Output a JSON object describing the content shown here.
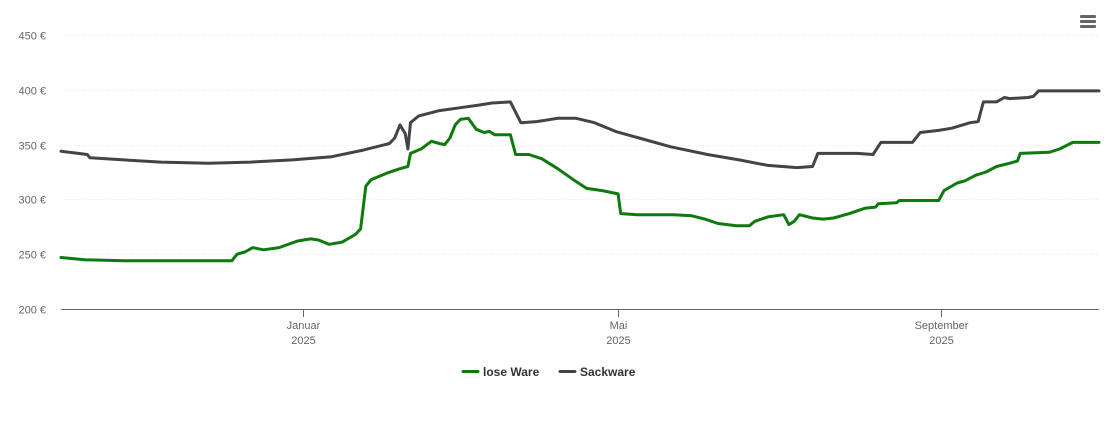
{
  "menu": {
    "icon": "hamburger-menu-icon"
  },
  "chart_data": {
    "type": "line",
    "title": "",
    "xlabel": "",
    "ylabel": "",
    "ylim": [
      200,
      450
    ],
    "xlim": [
      "2024-10-01",
      "2025-10-31"
    ],
    "y_ticks": [
      {
        "value": 200,
        "label": "200 €"
      },
      {
        "value": 250,
        "label": "250 €"
      },
      {
        "value": 300,
        "label": "300 €"
      },
      {
        "value": 350,
        "label": "350 €"
      },
      {
        "value": 400,
        "label": "400 €"
      },
      {
        "value": 450,
        "label": "450 €"
      }
    ],
    "x_ticks": [
      {
        "date": "2025-01-01",
        "label": "Januar",
        "year": "2025"
      },
      {
        "date": "2025-05-01",
        "label": "Mai",
        "year": "2025"
      },
      {
        "date": "2025-09-01",
        "label": "September",
        "year": "2025"
      }
    ],
    "grid": true,
    "legend_position": "bottom-center",
    "series": [
      {
        "name": "lose Ware",
        "color": "#0e7a0d",
        "points": [
          [
            "2024-10-01",
            247
          ],
          [
            "2024-10-10",
            245
          ],
          [
            "2024-10-25",
            244
          ],
          [
            "2024-11-20",
            244
          ],
          [
            "2024-12-05",
            244
          ],
          [
            "2024-12-07",
            250
          ],
          [
            "2024-12-10",
            252
          ],
          [
            "2024-12-13",
            256
          ],
          [
            "2024-12-17",
            254
          ],
          [
            "2024-12-23",
            256
          ],
          [
            "2024-12-30",
            262
          ],
          [
            "2025-01-04",
            264
          ],
          [
            "2025-01-07",
            263
          ],
          [
            "2025-01-11",
            259
          ],
          [
            "2025-01-16",
            261
          ],
          [
            "2025-01-21",
            268
          ],
          [
            "2025-01-23",
            273
          ],
          [
            "2025-01-25",
            312
          ],
          [
            "2025-01-27",
            318
          ],
          [
            "2025-02-02",
            324
          ],
          [
            "2025-02-07",
            328
          ],
          [
            "2025-02-10",
            330
          ],
          [
            "2025-02-11",
            342
          ],
          [
            "2025-02-15",
            346
          ],
          [
            "2025-02-19",
            353
          ],
          [
            "2025-02-22",
            351
          ],
          [
            "2025-02-24",
            350
          ],
          [
            "2025-02-26",
            356
          ],
          [
            "2025-02-28",
            368
          ],
          [
            "2025-03-02",
            373
          ],
          [
            "2025-03-05",
            374
          ],
          [
            "2025-03-08",
            364
          ],
          [
            "2025-03-11",
            361
          ],
          [
            "2025-03-13",
            362
          ],
          [
            "2025-03-15",
            359
          ],
          [
            "2025-03-21",
            359
          ],
          [
            "2025-03-23",
            341
          ],
          [
            "2025-03-28",
            341
          ],
          [
            "2025-04-02",
            337
          ],
          [
            "2025-04-08",
            328
          ],
          [
            "2025-04-14",
            318
          ],
          [
            "2025-04-19",
            310
          ],
          [
            "2025-04-25",
            308
          ],
          [
            "2025-05-01",
            305
          ],
          [
            "2025-05-02",
            287
          ],
          [
            "2025-05-08",
            286
          ],
          [
            "2025-05-22",
            286
          ],
          [
            "2025-05-29",
            285
          ],
          [
            "2025-06-03",
            282
          ],
          [
            "2025-06-08",
            278
          ],
          [
            "2025-06-15",
            276
          ],
          [
            "2025-06-20",
            276
          ],
          [
            "2025-06-22",
            280
          ],
          [
            "2025-06-27",
            284
          ],
          [
            "2025-07-03",
            286
          ],
          [
            "2025-07-05",
            277
          ],
          [
            "2025-07-07",
            280
          ],
          [
            "2025-07-09",
            286
          ],
          [
            "2025-07-14",
            283
          ],
          [
            "2025-07-18",
            282
          ],
          [
            "2025-07-22",
            283
          ],
          [
            "2025-07-28",
            287
          ],
          [
            "2025-08-03",
            292
          ],
          [
            "2025-08-07",
            293
          ],
          [
            "2025-08-08",
            296
          ],
          [
            "2025-08-15",
            297
          ],
          [
            "2025-08-16",
            299
          ],
          [
            "2025-08-31",
            299
          ],
          [
            "2025-09-02",
            308
          ],
          [
            "2025-09-07",
            315
          ],
          [
            "2025-09-10",
            317
          ],
          [
            "2025-09-14",
            322
          ],
          [
            "2025-09-18",
            325
          ],
          [
            "2025-09-22",
            330
          ],
          [
            "2025-09-27",
            333
          ],
          [
            "2025-09-30",
            335
          ],
          [
            "2025-10-01",
            342
          ],
          [
            "2025-10-12",
            343
          ],
          [
            "2025-10-16",
            346
          ],
          [
            "2025-10-21",
            352
          ],
          [
            "2025-10-31",
            352
          ]
        ]
      },
      {
        "name": "Sackware",
        "color": "#434348",
        "points": [
          [
            "2024-10-01",
            344
          ],
          [
            "2024-10-11",
            341
          ],
          [
            "2024-10-12",
            338
          ],
          [
            "2024-10-25",
            336
          ],
          [
            "2024-11-08",
            334
          ],
          [
            "2024-11-26",
            333
          ],
          [
            "2024-12-12",
            334
          ],
          [
            "2024-12-28",
            336
          ],
          [
            "2025-01-12",
            339
          ],
          [
            "2025-01-24",
            345
          ],
          [
            "2025-02-03",
            351
          ],
          [
            "2025-02-05",
            356
          ],
          [
            "2025-02-07",
            368
          ],
          [
            "2025-02-09",
            360
          ],
          [
            "2025-02-10",
            346
          ],
          [
            "2025-02-11",
            370
          ],
          [
            "2025-02-14",
            376
          ],
          [
            "2025-02-22",
            381
          ],
          [
            "2025-03-03",
            384
          ],
          [
            "2025-03-09",
            386
          ],
          [
            "2025-03-14",
            388
          ],
          [
            "2025-03-21",
            389
          ],
          [
            "2025-03-25",
            370
          ],
          [
            "2025-03-31",
            371
          ],
          [
            "2025-04-08",
            374
          ],
          [
            "2025-04-15",
            374
          ],
          [
            "2025-04-22",
            370
          ],
          [
            "2025-04-30",
            362
          ],
          [
            "2025-05-09",
            356
          ],
          [
            "2025-05-21",
            348
          ],
          [
            "2025-06-04",
            341
          ],
          [
            "2025-06-16",
            336
          ],
          [
            "2025-06-27",
            331
          ],
          [
            "2025-07-08",
            329
          ],
          [
            "2025-07-14",
            330
          ],
          [
            "2025-07-16",
            342
          ],
          [
            "2025-07-31",
            342
          ],
          [
            "2025-08-06",
            341
          ],
          [
            "2025-08-09",
            352
          ],
          [
            "2025-08-21",
            352
          ],
          [
            "2025-08-24",
            361
          ],
          [
            "2025-08-31",
            363
          ],
          [
            "2025-09-05",
            365
          ],
          [
            "2025-09-12",
            370
          ],
          [
            "2025-09-15",
            371
          ],
          [
            "2025-09-17",
            389
          ],
          [
            "2025-09-22",
            389
          ],
          [
            "2025-09-25",
            393
          ],
          [
            "2025-09-27",
            392
          ],
          [
            "2025-10-04",
            393
          ],
          [
            "2025-10-06",
            394
          ],
          [
            "2025-10-08",
            399
          ],
          [
            "2025-10-31",
            399
          ]
        ]
      }
    ]
  }
}
